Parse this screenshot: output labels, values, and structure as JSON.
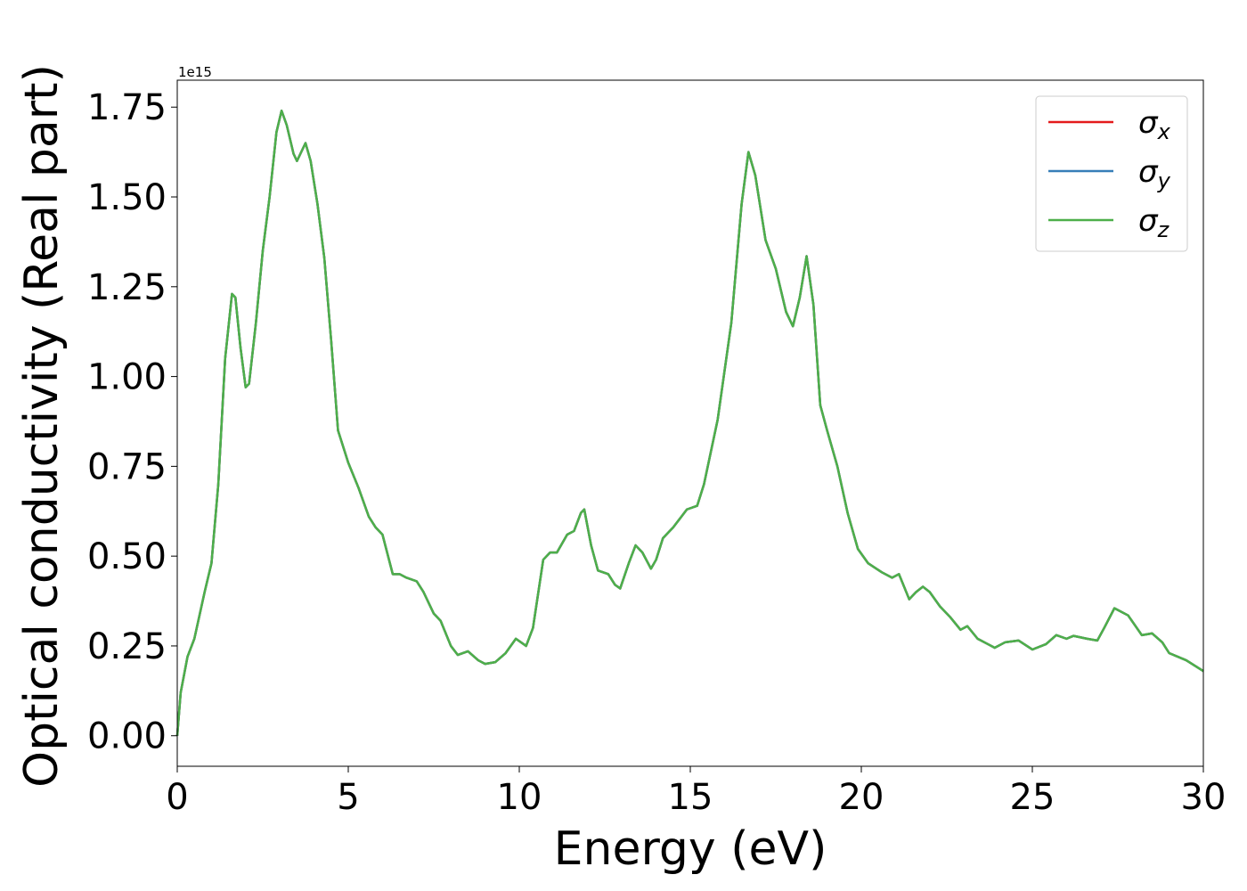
{
  "chart_data": {
    "type": "line",
    "xlabel": "Energy (eV)",
    "ylabel": "Optical conductivity (Real part)",
    "y_offset_label": "1e15",
    "xlim": [
      0,
      30
    ],
    "ylim": [
      -0.085,
      1.825
    ],
    "xticks": [
      0,
      5,
      10,
      15,
      20,
      25,
      30
    ],
    "yticks": [
      {
        "value": 0,
        "label": "0.00"
      },
      {
        "value": 0.25,
        "label": "0.25"
      },
      {
        "value": 0.5,
        "label": "0.50"
      },
      {
        "value": 0.75,
        "label": "0.75"
      },
      {
        "value": 1,
        "label": "1.00"
      },
      {
        "value": 1.25,
        "label": "1.25"
      },
      {
        "value": 1.5,
        "label": "1.50"
      },
      {
        "value": 1.75,
        "label": "1.75"
      }
    ],
    "grid": false,
    "legend": "upper right",
    "x": [
      0,
      0.1,
      0.3,
      0.5,
      0.8,
      1.0,
      1.2,
      1.4,
      1.6,
      1.7,
      1.85,
      2.0,
      2.1,
      2.3,
      2.5,
      2.7,
      2.9,
      3.05,
      3.2,
      3.4,
      3.5,
      3.6,
      3.75,
      3.9,
      4.1,
      4.3,
      4.5,
      4.7,
      5.0,
      5.3,
      5.6,
      5.8,
      6.0,
      6.3,
      6.5,
      6.7,
      7.0,
      7.2,
      7.5,
      7.7,
      8.0,
      8.2,
      8.5,
      8.8,
      9.0,
      9.3,
      9.6,
      9.9,
      10.2,
      10.4,
      10.7,
      10.9,
      11.1,
      11.4,
      11.6,
      11.8,
      11.9,
      12.1,
      12.3,
      12.6,
      12.8,
      12.95,
      13.2,
      13.4,
      13.6,
      13.85,
      14.0,
      14.2,
      14.5,
      14.9,
      15.2,
      15.4,
      15.8,
      16.2,
      16.5,
      16.7,
      16.9,
      17.2,
      17.5,
      17.8,
      18.0,
      18.2,
      18.4,
      18.6,
      18.8,
      19.0,
      19.3,
      19.6,
      19.9,
      20.2,
      20.6,
      20.9,
      21.1,
      21.4,
      21.6,
      21.8,
      22.0,
      22.3,
      22.6,
      22.9,
      23.1,
      23.4,
      23.7,
      23.9,
      24.2,
      24.6,
      25.0,
      25.4,
      25.7,
      26.0,
      26.2,
      26.6,
      26.9,
      27.1,
      27.4,
      27.8,
      28.2,
      28.5,
      28.8,
      29.0,
      29.5,
      30.0
    ],
    "series": [
      {
        "name": "σx",
        "color": "#e41a1c",
        "values": [
          0,
          0.12,
          0.22,
          0.27,
          0.4,
          0.48,
          0.7,
          1.05,
          1.23,
          1.22,
          1.08,
          0.97,
          0.98,
          1.15,
          1.35,
          1.5,
          1.68,
          1.74,
          1.7,
          1.62,
          1.6,
          1.62,
          1.65,
          1.6,
          1.48,
          1.33,
          1.1,
          0.85,
          0.76,
          0.69,
          0.61,
          0.58,
          0.56,
          0.45,
          0.45,
          0.44,
          0.43,
          0.4,
          0.34,
          0.32,
          0.25,
          0.225,
          0.235,
          0.21,
          0.2,
          0.205,
          0.23,
          0.27,
          0.25,
          0.3,
          0.49,
          0.51,
          0.51,
          0.56,
          0.57,
          0.62,
          0.63,
          0.53,
          0.46,
          0.45,
          0.42,
          0.41,
          0.48,
          0.53,
          0.51,
          0.465,
          0.49,
          0.55,
          0.58,
          0.63,
          0.64,
          0.7,
          0.88,
          1.15,
          1.48,
          1.625,
          1.56,
          1.38,
          1.3,
          1.18,
          1.14,
          1.22,
          1.335,
          1.2,
          0.92,
          0.85,
          0.75,
          0.62,
          0.52,
          0.48,
          0.455,
          0.44,
          0.45,
          0.38,
          0.4,
          0.415,
          0.4,
          0.36,
          0.33,
          0.295,
          0.305,
          0.27,
          0.255,
          0.245,
          0.26,
          0.265,
          0.24,
          0.255,
          0.28,
          0.27,
          0.278,
          0.27,
          0.265,
          0.3,
          0.355,
          0.335,
          0.28,
          0.285,
          0.26,
          0.23,
          0.21,
          0.18
        ]
      },
      {
        "name": "σy",
        "color": "#377eb8",
        "values": [
          0,
          0.12,
          0.22,
          0.27,
          0.4,
          0.48,
          0.7,
          1.05,
          1.23,
          1.22,
          1.08,
          0.97,
          0.98,
          1.15,
          1.35,
          1.5,
          1.68,
          1.74,
          1.7,
          1.62,
          1.6,
          1.62,
          1.65,
          1.6,
          1.48,
          1.33,
          1.1,
          0.85,
          0.76,
          0.69,
          0.61,
          0.58,
          0.56,
          0.45,
          0.45,
          0.44,
          0.43,
          0.4,
          0.34,
          0.32,
          0.25,
          0.225,
          0.235,
          0.21,
          0.2,
          0.205,
          0.23,
          0.27,
          0.25,
          0.3,
          0.49,
          0.51,
          0.51,
          0.56,
          0.57,
          0.62,
          0.63,
          0.53,
          0.46,
          0.45,
          0.42,
          0.41,
          0.48,
          0.53,
          0.51,
          0.465,
          0.49,
          0.55,
          0.58,
          0.63,
          0.64,
          0.7,
          0.88,
          1.15,
          1.48,
          1.625,
          1.56,
          1.38,
          1.3,
          1.18,
          1.14,
          1.22,
          1.335,
          1.2,
          0.92,
          0.85,
          0.75,
          0.62,
          0.52,
          0.48,
          0.455,
          0.44,
          0.45,
          0.38,
          0.4,
          0.415,
          0.4,
          0.36,
          0.33,
          0.295,
          0.305,
          0.27,
          0.255,
          0.245,
          0.26,
          0.265,
          0.24,
          0.255,
          0.28,
          0.27,
          0.278,
          0.27,
          0.265,
          0.3,
          0.355,
          0.335,
          0.28,
          0.285,
          0.26,
          0.23,
          0.21,
          0.18
        ]
      },
      {
        "name": "σz",
        "color": "#4daf4a",
        "values": [
          0,
          0.12,
          0.22,
          0.27,
          0.4,
          0.48,
          0.7,
          1.05,
          1.23,
          1.22,
          1.08,
          0.97,
          0.98,
          1.15,
          1.35,
          1.5,
          1.68,
          1.74,
          1.7,
          1.62,
          1.6,
          1.62,
          1.65,
          1.6,
          1.48,
          1.33,
          1.1,
          0.85,
          0.76,
          0.69,
          0.61,
          0.58,
          0.56,
          0.45,
          0.45,
          0.44,
          0.43,
          0.4,
          0.34,
          0.32,
          0.25,
          0.225,
          0.235,
          0.21,
          0.2,
          0.205,
          0.23,
          0.27,
          0.25,
          0.3,
          0.49,
          0.51,
          0.51,
          0.56,
          0.57,
          0.62,
          0.63,
          0.53,
          0.46,
          0.45,
          0.42,
          0.41,
          0.48,
          0.53,
          0.51,
          0.465,
          0.49,
          0.55,
          0.58,
          0.63,
          0.64,
          0.7,
          0.88,
          1.15,
          1.48,
          1.625,
          1.56,
          1.38,
          1.3,
          1.18,
          1.14,
          1.22,
          1.335,
          1.2,
          0.92,
          0.85,
          0.75,
          0.62,
          0.52,
          0.48,
          0.455,
          0.44,
          0.45,
          0.38,
          0.4,
          0.415,
          0.4,
          0.36,
          0.33,
          0.295,
          0.305,
          0.27,
          0.255,
          0.245,
          0.26,
          0.265,
          0.24,
          0.255,
          0.28,
          0.27,
          0.278,
          0.27,
          0.265,
          0.3,
          0.355,
          0.335,
          0.28,
          0.285,
          0.26,
          0.23,
          0.21,
          0.18
        ]
      }
    ]
  }
}
